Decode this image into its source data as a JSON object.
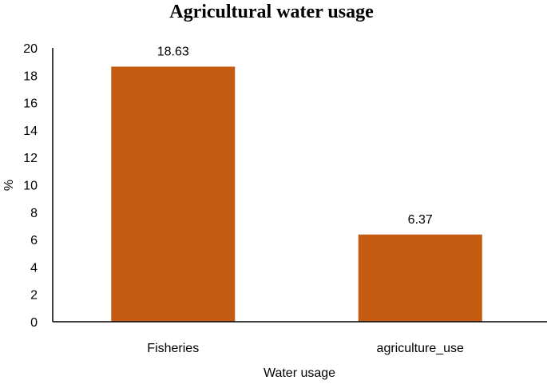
{
  "chart_data": {
    "type": "bar",
    "title": "Agricultural water usage",
    "xlabel": "Water usage",
    "ylabel": "%",
    "categories": [
      "Fisheries",
      "agriculture_use"
    ],
    "values": [
      18.63,
      6.37
    ],
    "data_labels": [
      "18.63",
      "6.37"
    ],
    "ylim": [
      0,
      20
    ],
    "yticks": [
      0,
      2,
      4,
      6,
      8,
      10,
      12,
      14,
      16,
      18,
      20
    ],
    "bar_color": "#C55A11",
    "grid": false,
    "legend": "none"
  }
}
